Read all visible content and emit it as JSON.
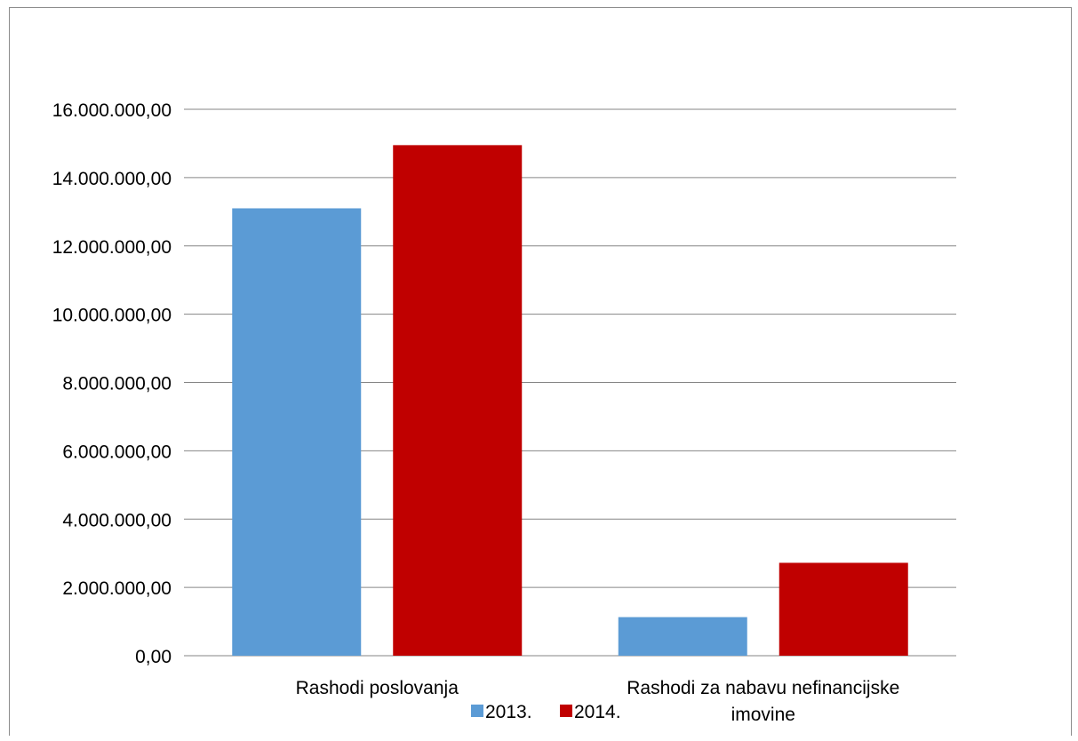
{
  "chart_data": {
    "type": "bar",
    "title": "",
    "xlabel": "",
    "ylabel": "",
    "categories": [
      [
        "Rashodi poslovanja"
      ],
      [
        "Rashodi za nabavu nefinancijske",
        "imovine"
      ]
    ],
    "series": [
      {
        "name": "2013.",
        "color": "#5b9bd5",
        "values": [
          13100000,
          1130000
        ]
      },
      {
        "name": "2014.",
        "color": "#c00000",
        "values": [
          14950000,
          2720000
        ]
      }
    ],
    "ylim": [
      0,
      16000000
    ],
    "yticks": [
      0,
      2000000,
      4000000,
      6000000,
      8000000,
      10000000,
      12000000,
      14000000,
      16000000
    ],
    "ytick_labels": [
      "0,00",
      "2.000.000,00",
      "4.000.000,00",
      "6.000.000,00",
      "8.000.000,00",
      "10.000.000,00",
      "12.000.000,00",
      "14.000.000,00",
      "16.000.000,00"
    ],
    "grid": true,
    "gridline_color": "#868686",
    "legend_position": "bottom"
  }
}
